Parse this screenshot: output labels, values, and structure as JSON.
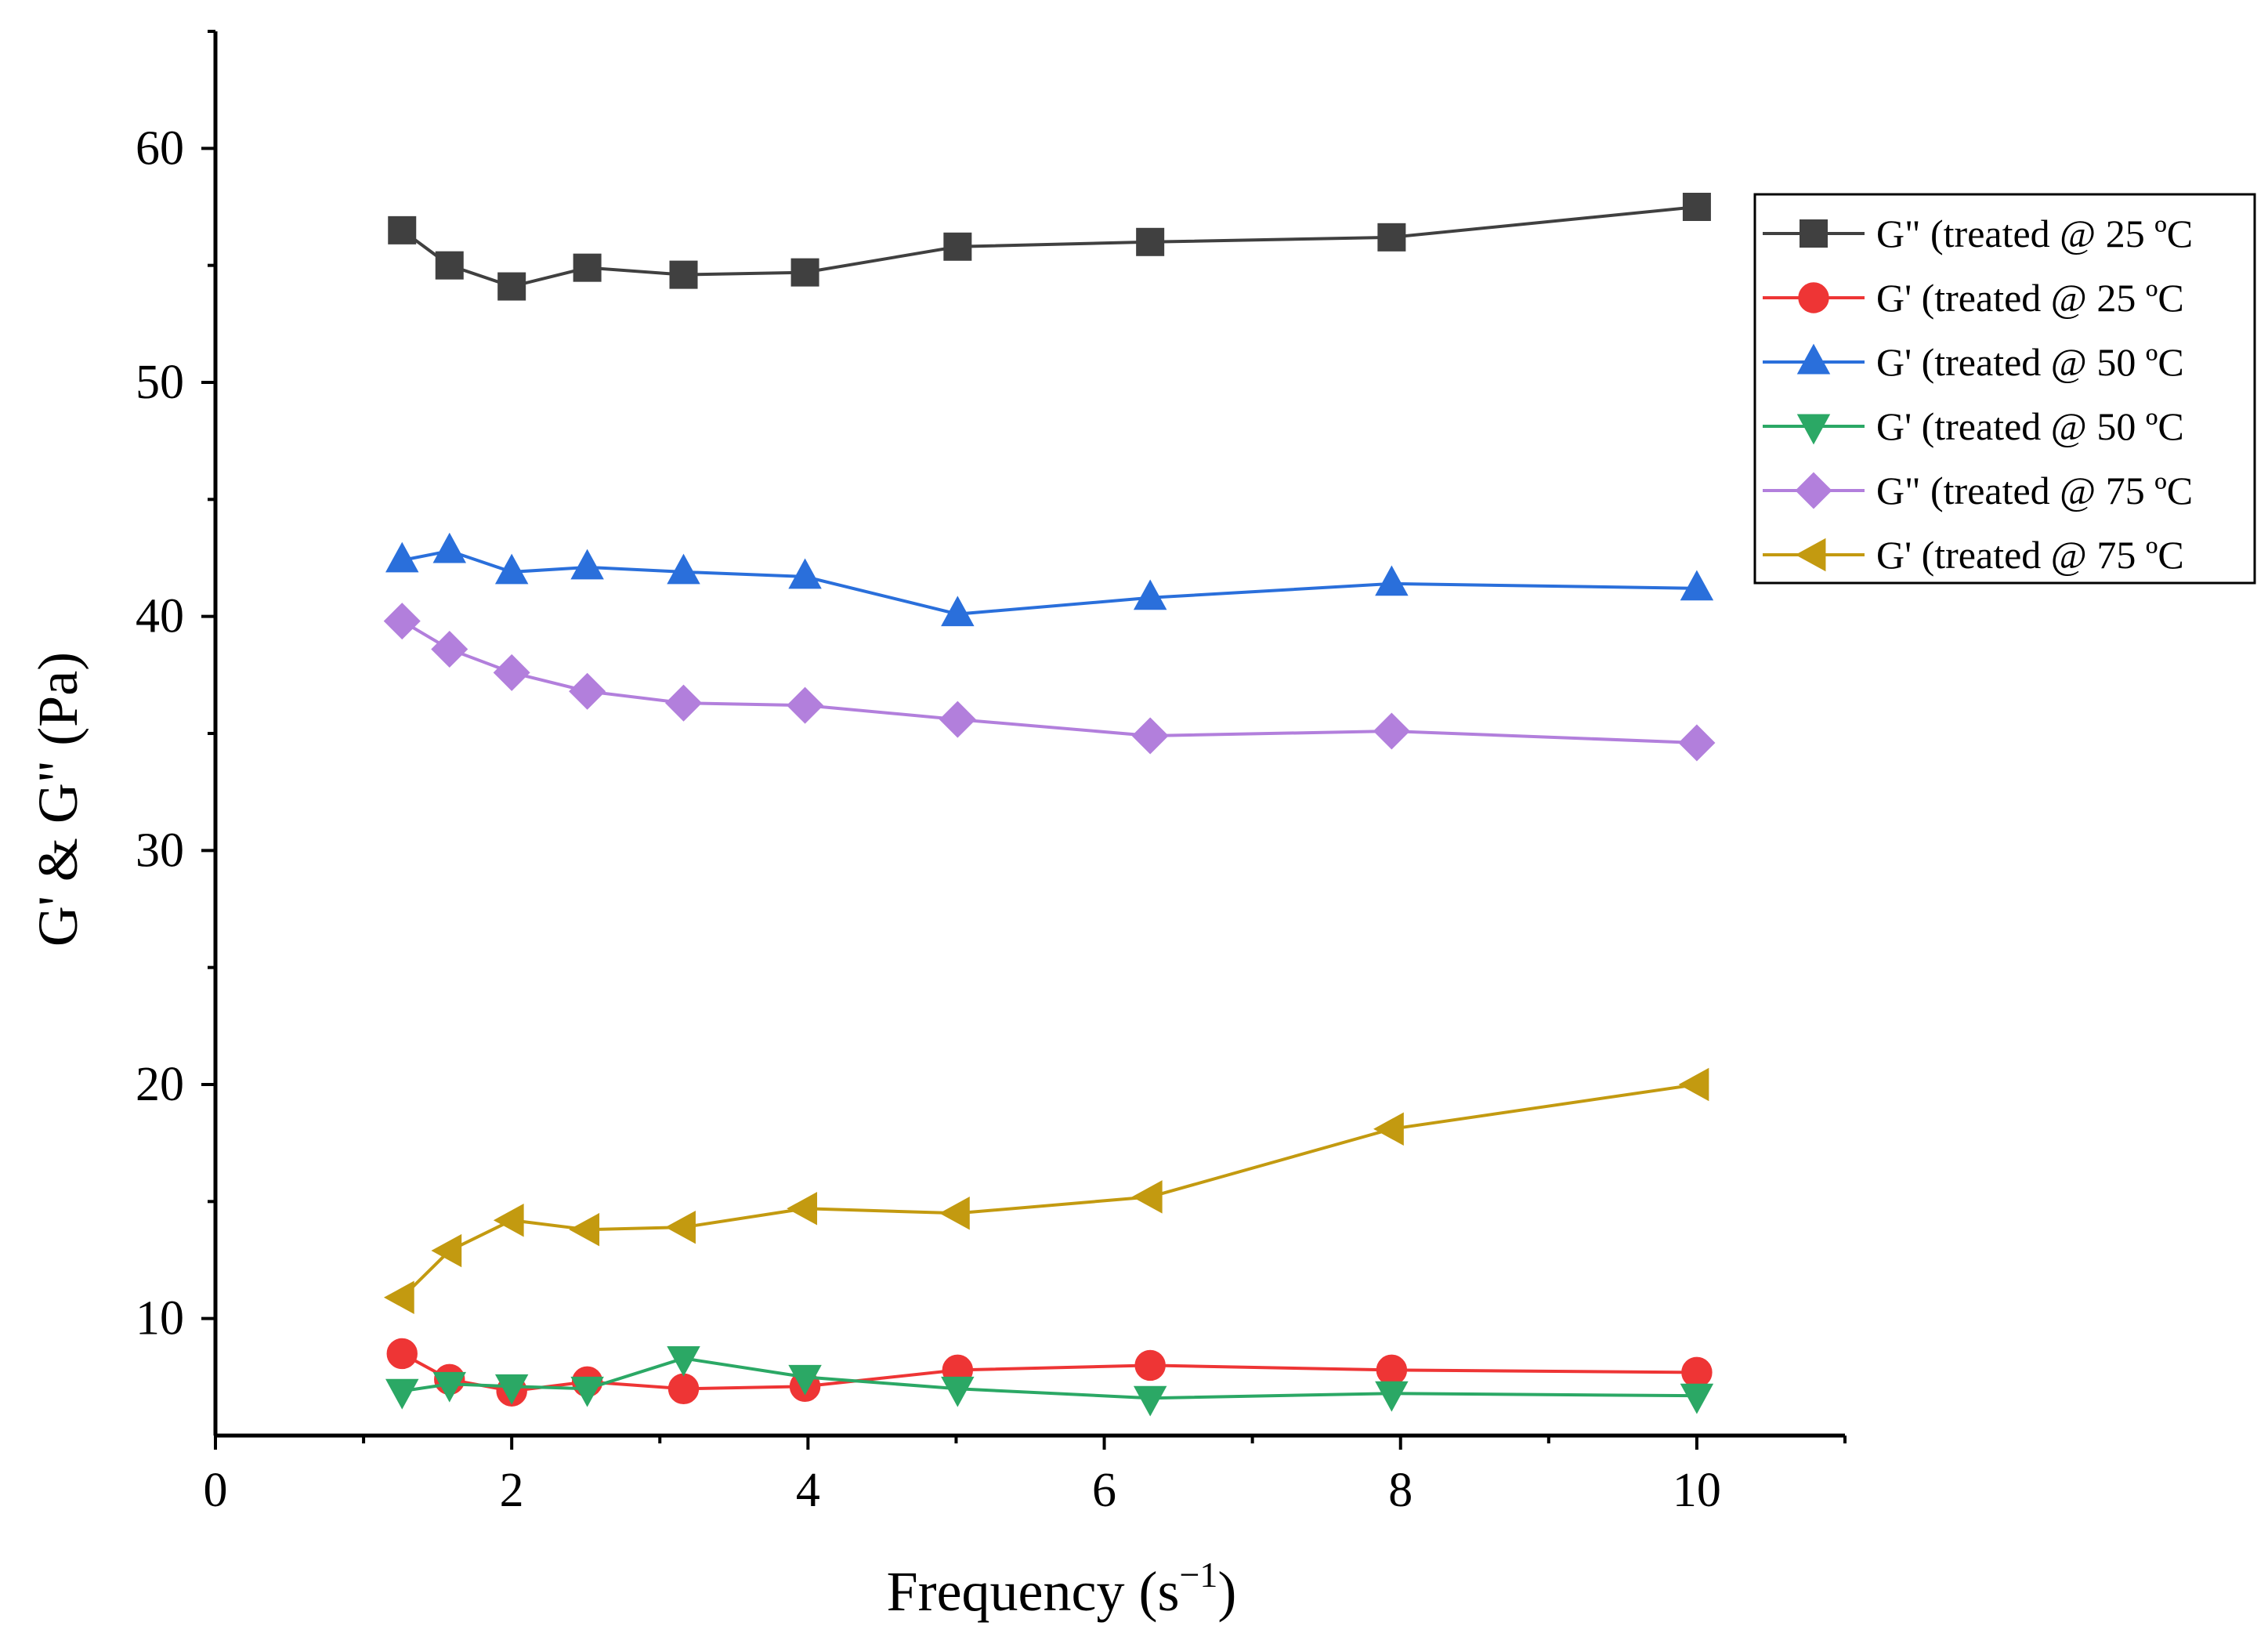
{
  "chart_data": {
    "type": "line",
    "title": "",
    "xlabel": "Frequency (s",
    "xlabel_sup": "−1",
    "xlabel_end": ")",
    "ylabel": "G' & G\" (Pa)",
    "xlim": [
      0,
      11
    ],
    "ylim": [
      5,
      65
    ],
    "x_ticks": [
      0,
      2,
      4,
      6,
      8,
      10
    ],
    "y_ticks": [
      10,
      20,
      30,
      40,
      50,
      60
    ],
    "x_tick_labels": [
      "0",
      "2",
      "4",
      "6",
      "8",
      "10"
    ],
    "y_tick_labels": [
      "10",
      "20",
      "30",
      "40",
      "50",
      "60"
    ],
    "grid": false,
    "legend_position": "top-right",
    "x": [
      1.26,
      1.58,
      2.0,
      2.51,
      3.16,
      3.98,
      5.01,
      6.31,
      7.94,
      10.0
    ],
    "series": [
      {
        "name": "G\" (treated @ 25 ºC",
        "color": "#404040",
        "marker": "square",
        "values": [
          56.5,
          55.0,
          54.1,
          54.9,
          54.6,
          54.7,
          55.8,
          56.0,
          56.2,
          57.5
        ]
      },
      {
        "name": "G' (treated @ 25 ºC",
        "color": "#ee3535",
        "marker": "circle",
        "values": [
          8.5,
          7.4,
          6.9,
          7.3,
          7.0,
          7.1,
          7.8,
          8.0,
          7.8,
          7.7
        ]
      },
      {
        "name": "G' (treated @ 50 ºC",
        "color": "#2a6fdb",
        "marker": "triangle-up",
        "values": [
          42.4,
          42.8,
          41.9,
          42.1,
          41.9,
          41.7,
          40.1,
          40.8,
          41.4,
          41.2
        ]
      },
      {
        "name": "G' (treated @ 50 ºC",
        "color": "#2ba865",
        "marker": "triangle-down",
        "values": [
          6.9,
          7.2,
          7.1,
          7.0,
          8.3,
          7.5,
          7.0,
          6.6,
          6.8,
          6.7
        ]
      },
      {
        "name": "G\" (treated @ 75 ºC",
        "color": "#b27fdc",
        "marker": "diamond",
        "values": [
          39.8,
          38.6,
          37.6,
          36.8,
          36.3,
          36.2,
          35.6,
          34.9,
          35.1,
          34.6
        ]
      },
      {
        "name": "G' (treated @ 75 ºC",
        "color": "#c39a10",
        "marker": "triangle-left",
        "values": [
          10.9,
          12.9,
          14.2,
          13.8,
          13.9,
          14.7,
          14.5,
          15.2,
          18.1,
          20.0
        ]
      }
    ]
  }
}
